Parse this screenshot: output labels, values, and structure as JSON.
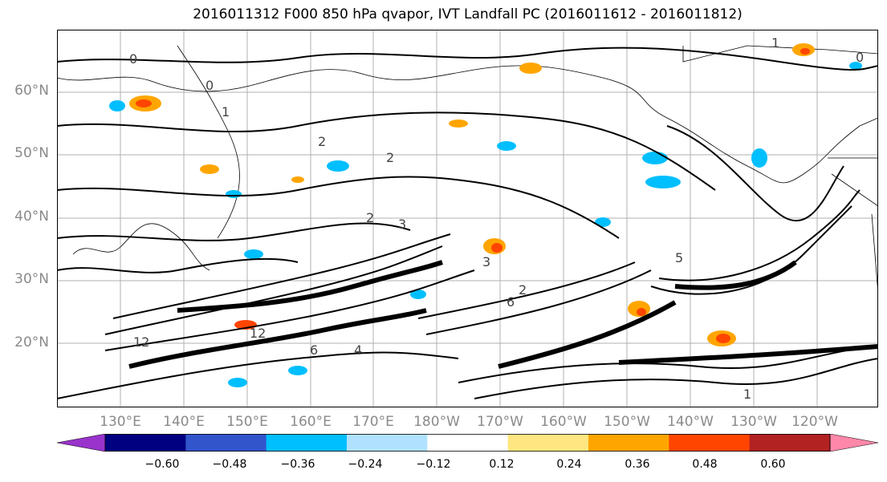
{
  "title": "2016011312 F000 850 hPa qvapor, IVT Landfall PC (2016011612 - 2016011812)",
  "map": {
    "lat_labels": [
      "60°N",
      "50°N",
      "40°N",
      "30°N",
      "20°N"
    ],
    "lon_labels": [
      "130°E",
      "140°E",
      "150°E",
      "160°E",
      "170°E",
      "180°W",
      "170°W",
      "160°W",
      "150°W",
      "140°W",
      "130°W",
      "120°W"
    ],
    "contour_labels": [
      "0",
      "0",
      "1",
      "1",
      "2",
      "2",
      "2",
      "2",
      "3",
      "3",
      "4",
      "5",
      "6",
      "6",
      "12",
      "12",
      "0",
      "1"
    ]
  },
  "colorbar": {
    "tick_labels": [
      "−0.60",
      "−0.48",
      "−0.36",
      "−0.24",
      "−0.12",
      "0.12",
      "0.24",
      "0.36",
      "0.48",
      "0.60"
    ],
    "colors": [
      "#9933cc",
      "#000080",
      "#3355cc",
      "#00bfff",
      "#b0e2ff",
      "#ffffff",
      "#ffe680",
      "#ffa500",
      "#ff4500",
      "#b22222",
      "#ff88aa"
    ]
  }
}
